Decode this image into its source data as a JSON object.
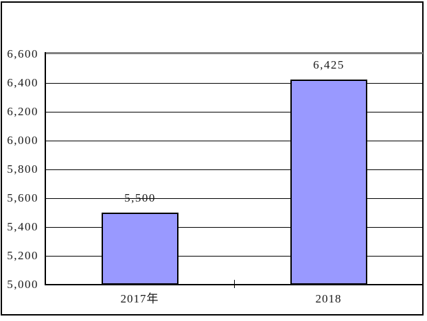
{
  "chart_data": {
    "type": "bar",
    "title": "",
    "xlabel": "",
    "ylabel": "",
    "categories": [
      "2017年",
      "2018"
    ],
    "values": [
      5500,
      6425
    ],
    "value_labels": [
      "5,500",
      "6,425"
    ],
    "series_name": "",
    "ylim": [
      5000,
      6600
    ],
    "y_tick_step": 200,
    "y_ticks": [
      5000,
      5200,
      5400,
      5600,
      5800,
      6000,
      6200,
      6400,
      6600
    ],
    "y_tick_labels": [
      "5,000",
      "5,200",
      "5,400",
      "5,600",
      "5,800",
      "6,000",
      "6,200",
      "6,400",
      "6,600"
    ],
    "grid": "horizontal",
    "legend": "none",
    "colors": {
      "bar_fill": "#9999FF",
      "bar_border": "#000000",
      "gridline": "#000000",
      "top_gridline": "#808080",
      "axis": "#000000",
      "frame_border": "#000000",
      "background": "#FFFFFF",
      "text": "#1A1A1A"
    }
  }
}
